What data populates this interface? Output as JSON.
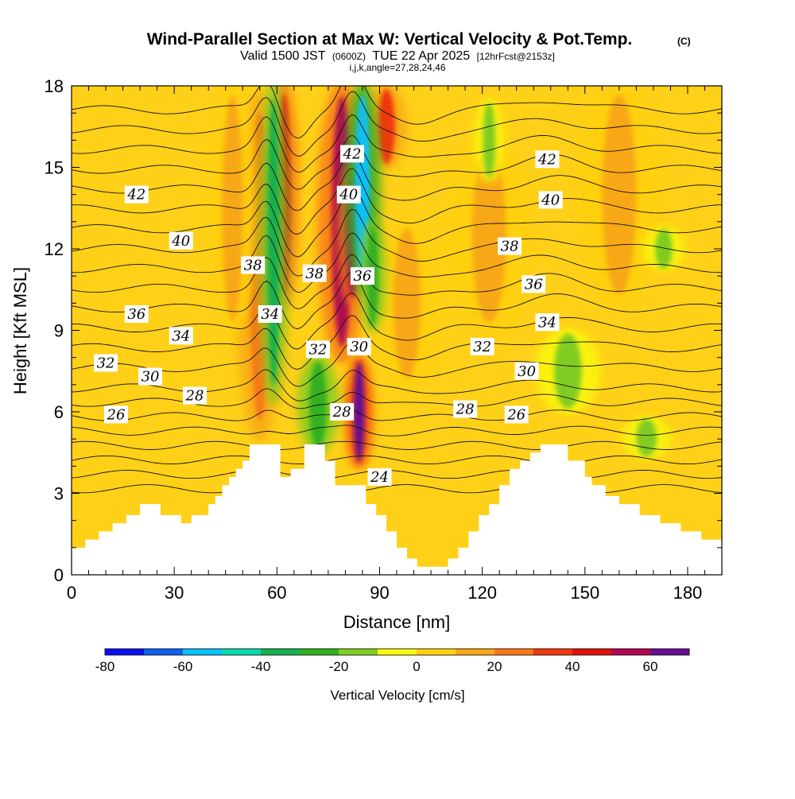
{
  "header": {
    "title": "Wind-Parallel Section at Max W: Vertical Velocity & Pot.Temp.",
    "title_mark": "(C)",
    "sub_valid": "Valid 1500 JST",
    "sub_utc": "(0600Z)",
    "sub_date": "TUE 22 Apr 2025",
    "sub_fcst": "[12hrFcst@2153z]",
    "sub_ijk": "i,j,k,angle=27,28,24,46"
  },
  "chart_data": {
    "type": "heatmap",
    "title": "Wind-Parallel Section at Max W: Vertical Velocity & Pot.Temp.",
    "xlabel": "Distance [nm]",
    "ylabel": "Height [Kft MSL]",
    "xlim": [
      0,
      190
    ],
    "ylim": [
      0,
      18
    ],
    "xticks": [
      "0",
      "30",
      "60",
      "90",
      "120",
      "150",
      "180"
    ],
    "yticks": [
      "0",
      "3",
      "6",
      "9",
      "12",
      "15",
      "18"
    ],
    "colorbar": {
      "label": "Vertical Velocity [cm/s]",
      "range": [
        -80,
        70
      ],
      "ticks": [
        "-80",
        "-60",
        "-40",
        "-20",
        "0",
        "20",
        "40",
        "60"
      ],
      "colors": [
        "#0a10f0",
        "#1060f0",
        "#08c0f8",
        "#08d8b0",
        "#18b050",
        "#30b020",
        "#80cc20",
        "#f8f810",
        "#ffd010",
        "#f8a818",
        "#f87818",
        "#f03810",
        "#e01010",
        "#b00850",
        "#6a1090"
      ]
    },
    "terrain": [
      [
        0,
        1.0
      ],
      [
        4,
        1.0
      ],
      [
        4,
        1.3
      ],
      [
        8,
        1.3
      ],
      [
        8,
        1.6
      ],
      [
        12,
        1.6
      ],
      [
        12,
        1.9
      ],
      [
        16,
        1.9
      ],
      [
        16,
        2.2
      ],
      [
        20,
        2.2
      ],
      [
        20,
        2.6
      ],
      [
        26,
        2.6
      ],
      [
        26,
        2.2
      ],
      [
        32,
        2.2
      ],
      [
        32,
        1.9
      ],
      [
        35,
        1.9
      ],
      [
        35,
        2.2
      ],
      [
        40,
        2.2
      ],
      [
        40,
        2.6
      ],
      [
        42,
        2.6
      ],
      [
        42,
        2.9
      ],
      [
        44,
        2.9
      ],
      [
        44,
        3.3
      ],
      [
        46,
        3.3
      ],
      [
        46,
        3.6
      ],
      [
        48,
        3.6
      ],
      [
        48,
        3.9
      ],
      [
        50,
        3.9
      ],
      [
        50,
        4.2
      ],
      [
        52,
        4.2
      ],
      [
        52,
        4.8
      ],
      [
        61,
        4.8
      ],
      [
        61,
        3.6
      ],
      [
        64,
        3.6
      ],
      [
        64,
        3.9
      ],
      [
        68,
        3.9
      ],
      [
        68,
        4.8
      ],
      [
        74,
        4.8
      ],
      [
        74,
        4.2
      ],
      [
        77,
        4.2
      ],
      [
        77,
        3.3
      ],
      [
        86,
        3.3
      ],
      [
        86,
        2.6
      ],
      [
        89,
        2.6
      ],
      [
        89,
        2.2
      ],
      [
        92,
        2.2
      ],
      [
        92,
        1.6
      ],
      [
        95,
        1.6
      ],
      [
        95,
        1.0
      ],
      [
        98,
        1.0
      ],
      [
        98,
        0.6
      ],
      [
        101,
        0.6
      ],
      [
        101,
        0.3
      ],
      [
        110,
        0.3
      ],
      [
        110,
        0.6
      ],
      [
        113,
        0.6
      ],
      [
        113,
        1.0
      ],
      [
        116,
        1.0
      ],
      [
        116,
        1.6
      ],
      [
        119,
        1.6
      ],
      [
        119,
        2.2
      ],
      [
        122,
        2.2
      ],
      [
        122,
        2.6
      ],
      [
        125,
        2.6
      ],
      [
        125,
        3.3
      ],
      [
        128,
        3.3
      ],
      [
        128,
        3.9
      ],
      [
        131,
        3.9
      ],
      [
        131,
        4.2
      ],
      [
        134,
        4.2
      ],
      [
        134,
        4.5
      ],
      [
        137,
        4.5
      ],
      [
        137,
        4.8
      ],
      [
        145,
        4.8
      ],
      [
        145,
        4.2
      ],
      [
        150,
        4.2
      ],
      [
        150,
        3.6
      ],
      [
        152,
        3.6
      ],
      [
        152,
        3.3
      ],
      [
        156,
        3.3
      ],
      [
        156,
        2.9
      ],
      [
        160,
        2.9
      ],
      [
        160,
        2.6
      ],
      [
        166,
        2.6
      ],
      [
        166,
        2.2
      ],
      [
        172,
        2.2
      ],
      [
        172,
        1.9
      ],
      [
        178,
        1.9
      ],
      [
        178,
        1.6
      ],
      [
        184,
        1.6
      ],
      [
        184,
        1.3
      ],
      [
        190,
        1.3
      ]
    ],
    "updrafts": [
      {
        "x": 55,
        "w": 3.0,
        "y0": 5.2,
        "y1": 17.5,
        "value": 28
      },
      {
        "x": 62,
        "w": 1.8,
        "y0": 10.0,
        "y1": 18.0,
        "value": 45
      },
      {
        "x": 79,
        "w": 3.0,
        "y0": 8.0,
        "y1": 18.0,
        "value": 50
      },
      {
        "x": 82,
        "w": 1.8,
        "y0": 10.0,
        "y1": 15.0,
        "value": 58
      },
      {
        "x": 84,
        "w": 1.6,
        "y0": 4.0,
        "y1": 8.0,
        "value": 62
      },
      {
        "x": 92,
        "w": 2.5,
        "y0": 15.0,
        "y1": 18.0,
        "value": 38
      },
      {
        "x": 47,
        "w": 3.0,
        "y0": 9.0,
        "y1": 18.0,
        "value": 16
      },
      {
        "x": 98,
        "w": 4.0,
        "y0": 7.0,
        "y1": 13.0,
        "value": 16
      },
      {
        "x": 122,
        "w": 5.0,
        "y0": 9.0,
        "y1": 16.0,
        "value": 14
      },
      {
        "x": 160,
        "w": 5.0,
        "y0": 10.0,
        "y1": 18.0,
        "value": 12
      }
    ],
    "downdrafts": [
      {
        "x": 59,
        "w": 1.8,
        "y0": 6.5,
        "y1": 18.0,
        "value": -35
      },
      {
        "x": 72,
        "w": 2.5,
        "y0": 4.5,
        "y1": 8.0,
        "value": -30
      },
      {
        "x": 85,
        "w": 2.2,
        "y0": 10.5,
        "y1": 18.0,
        "value": -55
      },
      {
        "x": 88,
        "w": 1.6,
        "y0": 9.0,
        "y1": 13.0,
        "value": -30
      },
      {
        "x": 122,
        "w": 1.8,
        "y0": 14.5,
        "y1": 17.5,
        "value": -15
      },
      {
        "x": 145,
        "w": 4.0,
        "y0": 6.0,
        "y1": 9.0,
        "value": -15
      },
      {
        "x": 168,
        "w": 3.0,
        "y0": 4.3,
        "y1": 5.8,
        "value": -15
      },
      {
        "x": 173,
        "w": 2.5,
        "y0": 11.2,
        "y1": 12.8,
        "value": -15
      }
    ],
    "theta_contours": [
      {
        "value": 24,
        "label_x": 90,
        "label_y": 3.6
      },
      {
        "value": 26,
        "label_x": 13,
        "label_y": 5.9
      },
      {
        "value": 26,
        "label_x": 130,
        "label_y": 5.9
      },
      {
        "value": 28,
        "label_x": 36,
        "label_y": 6.6
      },
      {
        "value": 28,
        "label_x": 115,
        "label_y": 6.1
      },
      {
        "value": 28,
        "label_x": 79,
        "label_y": 6.0
      },
      {
        "value": 30,
        "label_x": 23,
        "label_y": 7.3
      },
      {
        "value": 30,
        "label_x": 133,
        "label_y": 7.5
      },
      {
        "value": 30,
        "label_x": 84,
        "label_y": 8.4
      },
      {
        "value": 32,
        "label_x": 10,
        "label_y": 7.8
      },
      {
        "value": 32,
        "label_x": 72,
        "label_y": 8.3
      },
      {
        "value": 32,
        "label_x": 120,
        "label_y": 8.4
      },
      {
        "value": 34,
        "label_x": 32,
        "label_y": 8.8
      },
      {
        "value": 34,
        "label_x": 58,
        "label_y": 9.6
      },
      {
        "value": 34,
        "label_x": 139,
        "label_y": 9.3
      },
      {
        "value": 36,
        "label_x": 19,
        "label_y": 9.6
      },
      {
        "value": 36,
        "label_x": 85,
        "label_y": 11.0
      },
      {
        "value": 36,
        "label_x": 135,
        "label_y": 10.7
      },
      {
        "value": 38,
        "label_x": 53,
        "label_y": 11.4
      },
      {
        "value": 38,
        "label_x": 71,
        "label_y": 11.1
      },
      {
        "value": 38,
        "label_x": 128,
        "label_y": 12.1
      },
      {
        "value": 40,
        "label_x": 32,
        "label_y": 12.3
      },
      {
        "value": 40,
        "label_x": 81,
        "label_y": 14.0
      },
      {
        "value": 40,
        "label_x": 140,
        "label_y": 13.8
      },
      {
        "value": 42,
        "label_x": 19,
        "label_y": 14.0
      },
      {
        "value": 42,
        "label_x": 82,
        "label_y": 15.5
      },
      {
        "value": 42,
        "label_x": 139,
        "label_y": 15.3
      }
    ]
  }
}
